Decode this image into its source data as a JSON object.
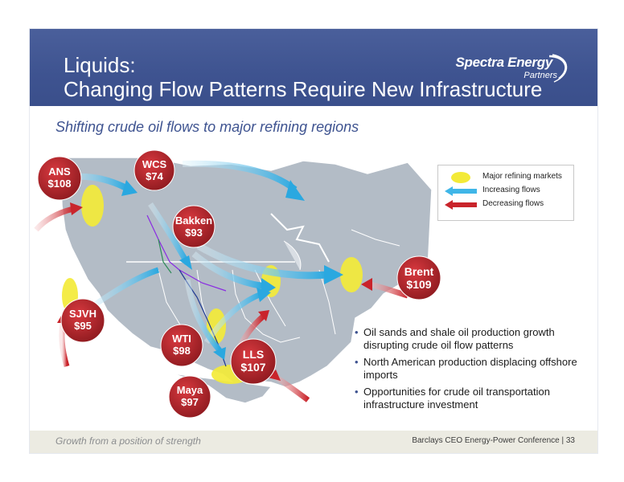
{
  "header": {
    "title_line1": "Liquids:",
    "title_line2": "Changing Flow Patterns Require New Infrastructure",
    "logo_brand": "Spectra Energy",
    "logo_sub": "Partners",
    "colors": {
      "header_bg": "#3e5390",
      "accent": "#3e5390"
    }
  },
  "subtitle": "Shifting crude oil flows to major refining regions",
  "legend": {
    "items": [
      {
        "label": "Major refining markets",
        "symbol": "yellow-ellipse",
        "color": "#f3ea38"
      },
      {
        "label": "Increasing flows",
        "symbol": "blue-arrow-icon",
        "color": "#3fb6e8"
      },
      {
        "label": "Decreasing flows",
        "symbol": "red-arrow-icon",
        "color": "#c9242b"
      }
    ]
  },
  "price_markers": [
    {
      "name": "ANS",
      "price": "$108"
    },
    {
      "name": "WCS",
      "price": "$74"
    },
    {
      "name": "Bakken",
      "price": "$93"
    },
    {
      "name": "Brent",
      "price": "$109"
    },
    {
      "name": "SJVH",
      "price": "$95"
    },
    {
      "name": "WTI",
      "price": "$98"
    },
    {
      "name": "LLS",
      "price": "$107"
    },
    {
      "name": "Maya",
      "price": "$97"
    }
  ],
  "bullets": [
    "Oil sands and shale oil production growth disrupting crude oil flow patterns",
    "North American production displacing offshore imports",
    "Opportunities for crude oil transportation infrastructure investment"
  ],
  "footer": {
    "left": "Growth from a position of strength",
    "right": "Barclays CEO Energy-Power Conference  |  33"
  }
}
